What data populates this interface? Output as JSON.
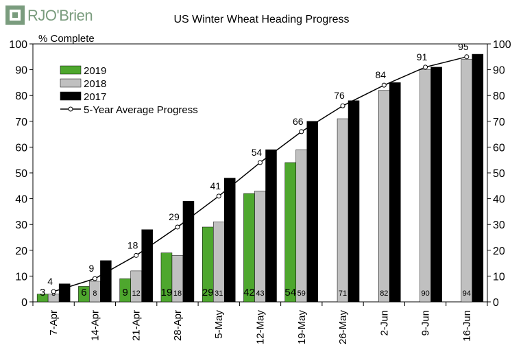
{
  "brand": {
    "logo_text": "RJO'Brien",
    "logo_color": "#7a9c7e"
  },
  "chart_data": {
    "type": "bar",
    "title": "US Winter Wheat Heading Progress",
    "ylabel": "% Complete",
    "xlabel": "",
    "ylim": [
      0,
      100
    ],
    "yticks": [
      0,
      10,
      20,
      30,
      40,
      50,
      60,
      70,
      80,
      90,
      100
    ],
    "categories": [
      "7-Apr",
      "14-Apr",
      "21-Apr",
      "28-Apr",
      "5-May",
      "12-May",
      "19-May",
      "26-May",
      "2-Jun",
      "9-Jun",
      "16-Jun"
    ],
    "series": [
      {
        "name": "2019",
        "kind": "bar",
        "color": "#4ea72e",
        "values": [
          3,
          6,
          9,
          19,
          29,
          42,
          54,
          null,
          null,
          null,
          null
        ],
        "labels": [
          "3",
          "6",
          "9",
          "19",
          "29",
          "42",
          "54",
          "",
          "",
          "",
          ""
        ]
      },
      {
        "name": "2018",
        "kind": "bar",
        "color": "#c0c0c0",
        "values": [
          3,
          8,
          12,
          18,
          31,
          43,
          59,
          71,
          82,
          90,
          94
        ],
        "labels": [
          "3",
          "8",
          "12",
          "18",
          "31",
          "43",
          "59",
          "71",
          "82",
          "90",
          "94"
        ]
      },
      {
        "name": "2017",
        "kind": "bar",
        "color": "#000000",
        "values": [
          7,
          16,
          28,
          39,
          48,
          59,
          70,
          78,
          85,
          91,
          96
        ]
      },
      {
        "name": "5-Year Average Progress",
        "kind": "line",
        "color": "#000000",
        "values": [
          4,
          9,
          18,
          29,
          41,
          54,
          66,
          76,
          84,
          91,
          95
        ],
        "labels": [
          "4",
          "9",
          "18",
          "29",
          "41",
          "54",
          "66",
          "76",
          "84",
          "91",
          "95"
        ]
      }
    ],
    "legend_position": "top-left",
    "grid": false
  }
}
